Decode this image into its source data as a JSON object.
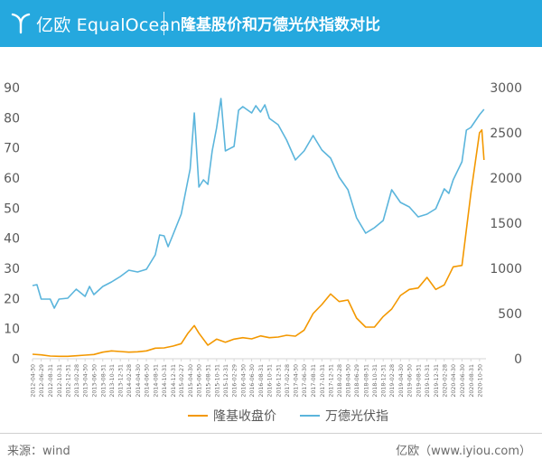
{
  "header": {
    "logo_text": "亿欧 EqualOcean",
    "title": "隆基股价和万德光伏指数对比",
    "background": "#25a8de"
  },
  "footer": {
    "source": "来源：wind",
    "credit": "亿欧（www.iyiou.com）"
  },
  "chart_data": {
    "type": "line",
    "title": "隆基股价和万德光伏指数对比",
    "grid": false,
    "legend_position": "bottom-center",
    "x_ticks": [
      "2012-04-30",
      "2012-06-29",
      "2012-08-31",
      "2012-10-31",
      "2012-12-31",
      "2013-02-28",
      "2013-04-30",
      "2013-06-30",
      "2013-08-31",
      "2013-10-31",
      "2013-12-31",
      "2014-02-28",
      "2014-04-30",
      "2014-06-30",
      "2014-08-31",
      "2014-10-31",
      "2014-12-31",
      "2015-02-27",
      "2015-04-30",
      "2015-06-30",
      "2015-08-31",
      "2015-10-31",
      "2015-12-31",
      "2016-02-29",
      "2016-04-30",
      "2016-06-30",
      "2016-08-31",
      "2016-10-31",
      "2016-12-31",
      "2017-02-28",
      "2017-04-30",
      "2017-06-30",
      "2017-08-31",
      "2017-10-31",
      "2017-12-31",
      "2018-02-28",
      "2018-04-30",
      "2018-06-29",
      "2018-08-31",
      "2018-10-31",
      "2018-12-31",
      "2019-02-28",
      "2019-04-30",
      "2019-06-30",
      "2019-08-31",
      "2019-10-31",
      "2019-12-31",
      "2020-02-28",
      "2020-04-30",
      "2020-06-30",
      "2020-08-31",
      "2020-10-30"
    ],
    "y_left": {
      "min": 0,
      "max": 90,
      "ticks": [
        0,
        10,
        20,
        30,
        40,
        50,
        60,
        70,
        80,
        90
      ]
    },
    "y_right": {
      "min": 0,
      "max": 3000,
      "ticks": [
        0,
        500,
        1000,
        1500,
        2000,
        2500,
        3000
      ]
    },
    "series": [
      {
        "name": "隆基收盘价",
        "axis": "left",
        "color": "#f39800",
        "points": [
          [
            "2012-04-30",
            1.5
          ],
          [
            "2012-06-29",
            1.3
          ],
          [
            "2012-08-31",
            0.9
          ],
          [
            "2012-10-31",
            0.8
          ],
          [
            "2012-12-31",
            0.8
          ],
          [
            "2013-02-28",
            1.0
          ],
          [
            "2013-04-30",
            1.2
          ],
          [
            "2013-06-30",
            1.4
          ],
          [
            "2013-08-31",
            2.2
          ],
          [
            "2013-10-31",
            2.6
          ],
          [
            "2013-12-31",
            2.4
          ],
          [
            "2014-02-28",
            2.2
          ],
          [
            "2014-04-30",
            2.3
          ],
          [
            "2014-06-30",
            2.6
          ],
          [
            "2014-08-31",
            3.5
          ],
          [
            "2014-10-31",
            3.6
          ],
          [
            "2014-12-31",
            4.2
          ],
          [
            "2015-02-27",
            5.0
          ],
          [
            "2015-04-15",
            8.5
          ],
          [
            "2015-05-29",
            11.0
          ],
          [
            "2015-06-30",
            8.5
          ],
          [
            "2015-08-31",
            4.5
          ],
          [
            "2015-10-31",
            6.5
          ],
          [
            "2015-12-31",
            5.5
          ],
          [
            "2016-02-29",
            6.5
          ],
          [
            "2016-04-30",
            7.0
          ],
          [
            "2016-06-30",
            6.6
          ],
          [
            "2016-08-31",
            7.6
          ],
          [
            "2016-10-31",
            7.0
          ],
          [
            "2016-12-31",
            7.2
          ],
          [
            "2017-02-28",
            7.8
          ],
          [
            "2017-04-30",
            7.5
          ],
          [
            "2017-06-30",
            9.5
          ],
          [
            "2017-08-31",
            15.0
          ],
          [
            "2017-10-31",
            18.0
          ],
          [
            "2017-12-31",
            21.5
          ],
          [
            "2018-02-28",
            19.0
          ],
          [
            "2018-04-30",
            19.5
          ],
          [
            "2018-06-29",
            13.5
          ],
          [
            "2018-08-31",
            10.5
          ],
          [
            "2018-10-31",
            10.5
          ],
          [
            "2018-12-31",
            14.0
          ],
          [
            "2019-02-28",
            16.5
          ],
          [
            "2019-04-30",
            21.0
          ],
          [
            "2019-06-30",
            23.0
          ],
          [
            "2019-08-31",
            23.5
          ],
          [
            "2019-10-31",
            27.0
          ],
          [
            "2019-12-31",
            23.0
          ],
          [
            "2020-02-28",
            24.5
          ],
          [
            "2020-04-30",
            30.5
          ],
          [
            "2020-06-30",
            31.0
          ],
          [
            "2020-08-31",
            55.0
          ],
          [
            "2020-10-30",
            75.0
          ],
          [
            "2020-11-15",
            76.0
          ],
          [
            "2020-11-30",
            66.0
          ]
        ]
      },
      {
        "name": "万德光伏指",
        "axis": "right",
        "color": "#5bb5dc",
        "points": [
          [
            "2012-04-30",
            810
          ],
          [
            "2012-05-31",
            820
          ],
          [
            "2012-06-29",
            660
          ],
          [
            "2012-08-31",
            660
          ],
          [
            "2012-09-28",
            560
          ],
          [
            "2012-10-31",
            660
          ],
          [
            "2012-12-31",
            670
          ],
          [
            "2013-02-28",
            770
          ],
          [
            "2013-04-30",
            690
          ],
          [
            "2013-05-31",
            800
          ],
          [
            "2013-06-30",
            710
          ],
          [
            "2013-08-31",
            800
          ],
          [
            "2013-10-31",
            850
          ],
          [
            "2013-12-31",
            910
          ],
          [
            "2014-02-28",
            980
          ],
          [
            "2014-04-30",
            960
          ],
          [
            "2014-06-30",
            990
          ],
          [
            "2014-08-31",
            1150
          ],
          [
            "2014-09-30",
            1370
          ],
          [
            "2014-10-31",
            1360
          ],
          [
            "2014-11-28",
            1240
          ],
          [
            "2014-12-31",
            1370
          ],
          [
            "2015-02-27",
            1600
          ],
          [
            "2015-04-30",
            2100
          ],
          [
            "2015-05-29",
            2720
          ],
          [
            "2015-06-30",
            1900
          ],
          [
            "2015-07-31",
            1980
          ],
          [
            "2015-08-31",
            1930
          ],
          [
            "2015-09-30",
            2300
          ],
          [
            "2015-10-30",
            2550
          ],
          [
            "2015-11-30",
            2880
          ],
          [
            "2015-12-31",
            2300
          ],
          [
            "2016-02-29",
            2350
          ],
          [
            "2016-03-31",
            2750
          ],
          [
            "2016-04-30",
            2790
          ],
          [
            "2016-06-30",
            2720
          ],
          [
            "2016-07-29",
            2800
          ],
          [
            "2016-08-31",
            2730
          ],
          [
            "2016-09-30",
            2810
          ],
          [
            "2016-10-31",
            2660
          ],
          [
            "2016-12-31",
            2590
          ],
          [
            "2017-02-28",
            2420
          ],
          [
            "2017-04-30",
            2200
          ],
          [
            "2017-06-30",
            2300
          ],
          [
            "2017-08-31",
            2470
          ],
          [
            "2017-10-31",
            2310
          ],
          [
            "2017-12-31",
            2220
          ],
          [
            "2018-02-28",
            2010
          ],
          [
            "2018-04-30",
            1870
          ],
          [
            "2018-06-29",
            1560
          ],
          [
            "2018-08-31",
            1390
          ],
          [
            "2018-10-31",
            1450
          ],
          [
            "2018-12-31",
            1530
          ],
          [
            "2019-02-28",
            1870
          ],
          [
            "2019-04-30",
            1730
          ],
          [
            "2019-06-30",
            1680
          ],
          [
            "2019-08-31",
            1570
          ],
          [
            "2019-10-31",
            1600
          ],
          [
            "2019-12-31",
            1660
          ],
          [
            "2020-02-28",
            1880
          ],
          [
            "2020-03-31",
            1830
          ],
          [
            "2020-04-30",
            1980
          ],
          [
            "2020-06-30",
            2180
          ],
          [
            "2020-07-31",
            2530
          ],
          [
            "2020-08-31",
            2560
          ],
          [
            "2020-10-30",
            2700
          ],
          [
            "2020-11-30",
            2760
          ]
        ]
      }
    ]
  }
}
